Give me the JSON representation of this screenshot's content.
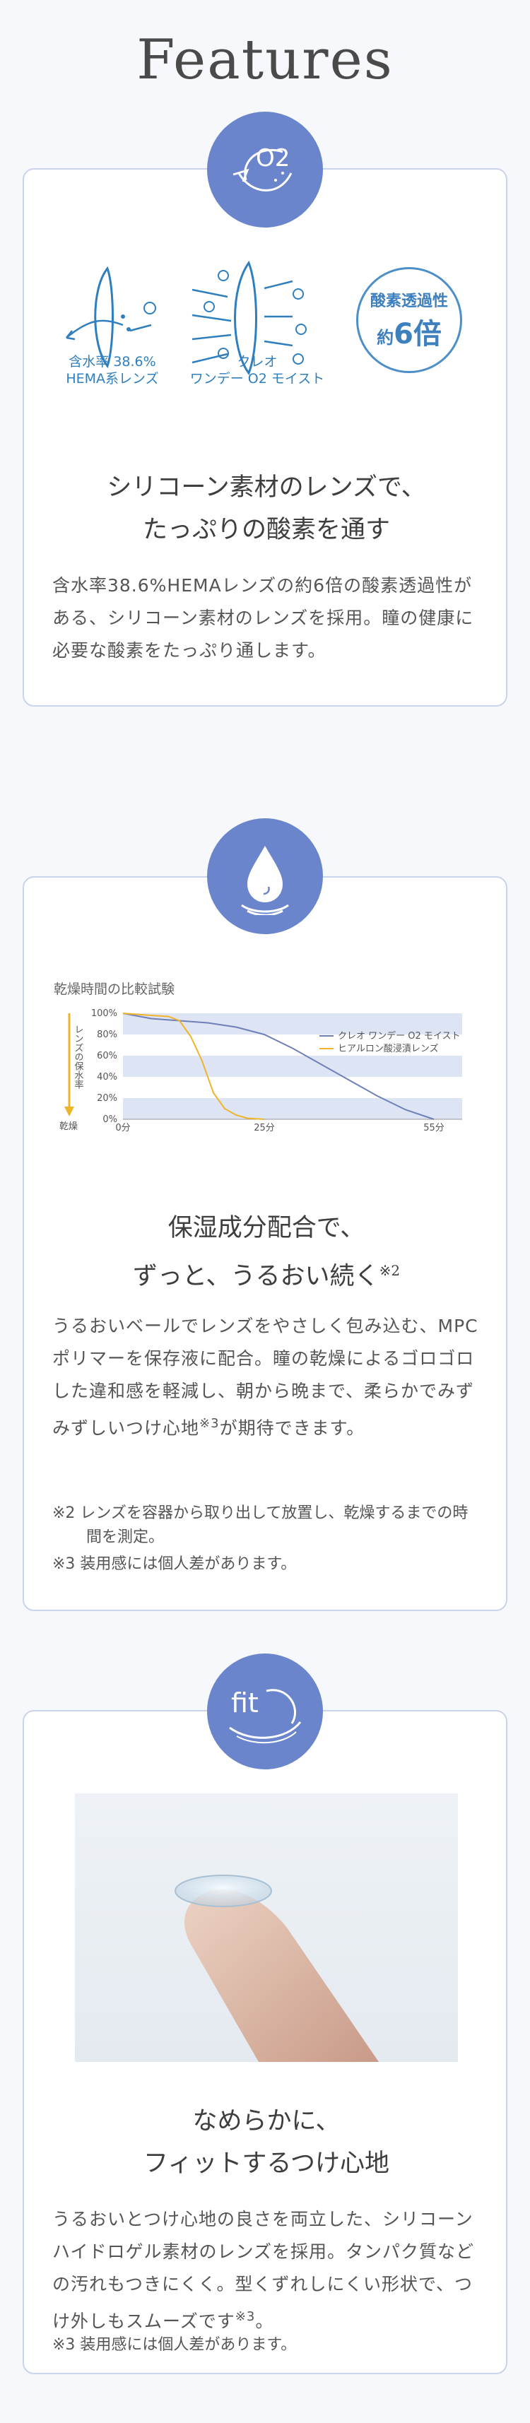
{
  "page_title": "Features",
  "features": [
    {
      "badge_icon": "o2-lens-icon",
      "badge_text": "O2",
      "diagram": {
        "left_label_line1": "含水率 38.6%",
        "left_label_line2": "HEMA系レンズ",
        "right_label_line1": "クレオ",
        "right_label_line2": "ワンデー O2 モイスト",
        "badge_line1": "酸素透過性",
        "badge_line2_prefix": "約",
        "badge_line2_value": "6倍",
        "o2_mark": "O2"
      },
      "heading_line1": "シリコーン素材のレンズで、",
      "heading_line2": "たっぷりの酸素を通す",
      "body": "含水率38.6%HEMAレンズの約6倍の酸素透過性がある、シリコーン素材のレンズを採用。瞳の健康に必要な酸素をたっぷり通します。"
    },
    {
      "badge_icon": "water-drop-icon",
      "heading_line1": "保湿成分配合で、",
      "heading_line2": "ずっと、うるおい続く",
      "heading_sup": "※2",
      "body": "うるおいベールでレンズをやさしく包み込む、MPCポリマーを保存液に配合。瞳の乾燥によるゴロゴロした違和感を軽減し、朝から晩まで、柔らかでみずみずしいつけ心地",
      "body_sup": "※3",
      "body_tail": "が期待できます。",
      "notes": [
        "※2 レンズを容器から取り出して放置し、乾燥するまでの時間を測定。",
        "※3 装用感には個人差があります。"
      ]
    },
    {
      "badge_icon": "fit-lens-icon",
      "badge_text": "fit",
      "photo_icon": "finger-with-contact-lens-icon",
      "heading_line1": "なめらかに、",
      "heading_line2": "フィットするつけ心地",
      "body": "うるおいとつけ心地の良さを両立した、シリコーンハイドロゲル素材のレンズを採用。タンパク質などの汚れもつきにくく。型くずれしにくい形状で、つけ外しもスムーズです",
      "body_sup": "※3",
      "body_tail": "。",
      "notes": [
        "※3 装用感には個人差があります。"
      ]
    }
  ],
  "chart_data": {
    "type": "line",
    "title": "乾燥時間の比較試験",
    "ylabel": "レンズの保水率",
    "y_arrow_label": "乾燥",
    "ylim": [
      0,
      100
    ],
    "y_ticks": [
      "100%",
      "80%",
      "60%",
      "40%",
      "20%",
      "0%"
    ],
    "x_ticks": [
      "0分",
      "25分",
      "55分"
    ],
    "x_tick_values": [
      0,
      25,
      55
    ],
    "xlim": [
      0,
      60
    ],
    "grid": "horizontal-bands",
    "legend_position": "top-right",
    "series": [
      {
        "name": "クレオ ワンデー O2 モイスト",
        "color": "#6f7fb8",
        "x": [
          0,
          5,
          10,
          15,
          20,
          25,
          30,
          35,
          40,
          45,
          50,
          55
        ],
        "y": [
          100,
          95,
          93,
          91,
          87,
          80,
          67,
          52,
          37,
          22,
          9,
          0
        ]
      },
      {
        "name": "ヒアルロン酸浸漬レンズ",
        "color": "#f0b429",
        "x": [
          0,
          5,
          8,
          10,
          12,
          14,
          16,
          18,
          20,
          22,
          25
        ],
        "y": [
          100,
          98,
          97,
          93,
          78,
          55,
          25,
          10,
          4,
          1,
          0
        ]
      }
    ]
  },
  "colors": {
    "accent": "#6a85cc",
    "card_border": "#c9d4ec",
    "diagram_blue": "#2f7fbf",
    "band": "#dde4f4"
  }
}
